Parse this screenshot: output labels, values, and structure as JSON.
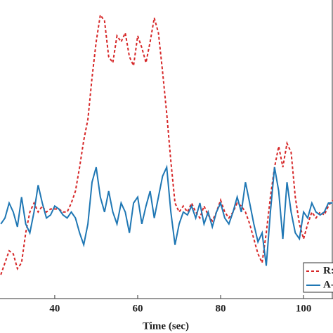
{
  "chart_data": {
    "type": "line",
    "x_label": "Time (sec)",
    "x": [
      27,
      28,
      29,
      30,
      31,
      32,
      33,
      34,
      35,
      36,
      37,
      38,
      39,
      40,
      41,
      42,
      43,
      44,
      45,
      46,
      47,
      48,
      49,
      50,
      51,
      52,
      53,
      54,
      55,
      56,
      57,
      58,
      59,
      60,
      61,
      62,
      63,
      64,
      65,
      66,
      67,
      68,
      69,
      70,
      71,
      72,
      73,
      74,
      75,
      76,
      77,
      78,
      79,
      80,
      81,
      82,
      83,
      84,
      85,
      86,
      87,
      88,
      89,
      90,
      91,
      92,
      93,
      94,
      95,
      96,
      97,
      98,
      99,
      100,
      101,
      102,
      103,
      104,
      105,
      106,
      107
    ],
    "series": [
      {
        "name": "R:",
        "color": "#d62728",
        "dash": true,
        "values": [
          8,
          12,
          16,
          15,
          10,
          12,
          22,
          29,
          32,
          29,
          31,
          29,
          30,
          30,
          30,
          29,
          29,
          32,
          36,
          44,
          53,
          60,
          74,
          86,
          95,
          93,
          81,
          79,
          88,
          86,
          89,
          81,
          78,
          88,
          84,
          79,
          86,
          94,
          89,
          76,
          62,
          46,
          32,
          29,
          31,
          29,
          32,
          29,
          27,
          31,
          28,
          26,
          29,
          33,
          29,
          27,
          29,
          32,
          31,
          29,
          25,
          20,
          15,
          12,
          22,
          34,
          44,
          51,
          44,
          52,
          49,
          34,
          25,
          20,
          25,
          29,
          27,
          29,
          28,
          31,
          33
        ]
      },
      {
        "name": "A-",
        "color": "#1f77b4",
        "dash": false,
        "values": [
          25,
          27,
          32,
          29,
          24,
          34,
          25,
          22,
          29,
          38,
          32,
          27,
          28,
          31,
          30,
          28,
          27,
          29,
          27,
          22,
          18,
          25,
          39,
          44,
          34,
          29,
          36,
          29,
          25,
          32,
          29,
          22,
          32,
          34,
          25,
          31,
          36,
          27,
          34,
          41,
          44,
          29,
          18,
          25,
          29,
          28,
          31,
          27,
          32,
          25,
          29,
          24,
          29,
          32,
          27,
          25,
          29,
          34,
          29,
          39,
          32,
          25,
          19,
          22,
          11,
          29,
          44,
          36,
          20,
          39,
          29,
          22,
          20,
          29,
          27,
          32,
          29,
          28,
          29,
          32,
          32
        ]
      }
    ],
    "xlim": [
      26.8,
      107.1
    ],
    "xticks": [
      40,
      60,
      80,
      100
    ],
    "ylim": [
      0,
      100
    ],
    "legend": "lower right"
  }
}
